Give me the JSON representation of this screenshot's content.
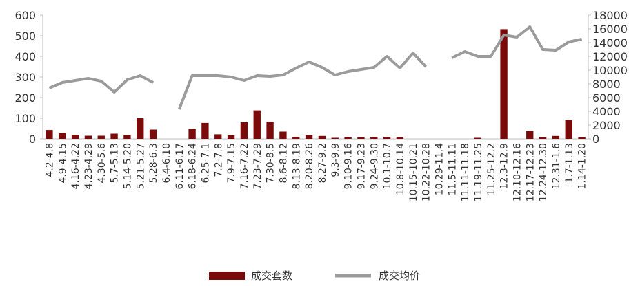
{
  "chart_data": {
    "type": "bar+line",
    "categories": [
      "4.2-4.8",
      "4.9-4.15",
      "4.16-4.22",
      "4.23-4.29",
      "4.30-5.6",
      "5.7-5.13",
      "5.14-5.20",
      "5.21-5.27",
      "5.28-6.3",
      "6.4-6.10",
      "6.11-6.17",
      "6.18-6.24",
      "6.25-7.1",
      "7.2-7.8",
      "7.9-7.15",
      "7.16-7.22",
      "7.23-7.29",
      "7.30-8.5",
      "8.6-8.12",
      "8.13-8.19",
      "8.20-8.26",
      "8.27-9.2",
      "9.3-9.9",
      "9.10-9.16",
      "9.17-9.23",
      "9.24-9.30",
      "10.1-10.7",
      "10.8-10.14",
      "10.15-10.21",
      "10.22-10.28",
      "10.29-11.4",
      "11.5-11.11",
      "11.12-11.18",
      "11.19-11.25",
      "11.26-12.2",
      "12.3-12.9",
      "12.10-12.16",
      "12.17-12.23",
      "12.24-12.30",
      "12.31-1.6",
      "1.7-1.13",
      "1.14-1.20"
    ],
    "visible_tick_labels": [
      "4.2-4.8",
      "4.9-4.15",
      "4.16-4.22",
      "4.23-4.29",
      "4.30-5.6",
      "5.7-5.13",
      "5.14-5.20",
      "5.21-5.27",
      "5.28-6.3",
      "6.4-6.10",
      "6.11-6.17",
      "6.18-6.24",
      "6.25-7.1",
      "7.2-7.8",
      "7.9-7.15",
      "7.16-7.22",
      "7.23-7.29",
      "7.30-8.5",
      "8.6-8.12",
      "8.13-8.19",
      "8.20-8.26",
      "8.27-9.2",
      "9.3-9.9",
      "9.10-9.16",
      "9.17-9.23",
      "9.24-9.30",
      "10.1-10.7",
      "10.8-10.14",
      "10.15-10.21",
      "10.22-10.28",
      "10.29-11.4",
      "11.5-11.11",
      "11.11-11.18",
      "11.19-11.25",
      "11.25-12.2",
      "12.3-12.9",
      "12.10-12.16",
      "12.17-12.23",
      "12.24-12.30",
      "12.31-1.6",
      "1.7-1.13",
      "1.14-1.20"
    ],
    "series": [
      {
        "name": "成交套数",
        "type": "bar",
        "axis": "left",
        "color": "#7b0a0a",
        "values": [
          43,
          28,
          20,
          15,
          15,
          25,
          18,
          100,
          45,
          0,
          0,
          48,
          77,
          22,
          18,
          80,
          138,
          83,
          35,
          10,
          18,
          14,
          5,
          8,
          8,
          8,
          8,
          8,
          0,
          0,
          0,
          0,
          0,
          5,
          0,
          532,
          0,
          38,
          8,
          14,
          92,
          8
        ]
      },
      {
        "name": "成交均价",
        "type": "line",
        "axis": "right",
        "color": "#9b9b9b",
        "values": [
          7400,
          8200,
          8500,
          8800,
          8400,
          6800,
          8600,
          9200,
          8200,
          null,
          4300,
          9200,
          9200,
          9200,
          9000,
          8500,
          9200,
          9100,
          9300,
          10300,
          11200,
          10400,
          9300,
          9800,
          10100,
          10400,
          12000,
          10300,
          12500,
          10500,
          null,
          11800,
          12700,
          12000,
          12000,
          15100,
          14800,
          16300,
          13000,
          12900,
          14100,
          14500
        ]
      }
    ],
    "y_left": {
      "ticks": [
        0,
        100,
        200,
        300,
        400,
        500,
        600
      ],
      "ylim": [
        0,
        600
      ]
    },
    "y_right": {
      "ticks": [
        0,
        2000,
        4000,
        6000,
        8000,
        10000,
        12000,
        14000,
        16000,
        18000
      ],
      "ylim": [
        0,
        18000
      ]
    },
    "legend": {
      "placement": "bottom-center",
      "items": [
        "成交套数",
        "成交均价"
      ]
    },
    "grid": false,
    "title": "",
    "xlabel": "",
    "ylabel": ""
  }
}
